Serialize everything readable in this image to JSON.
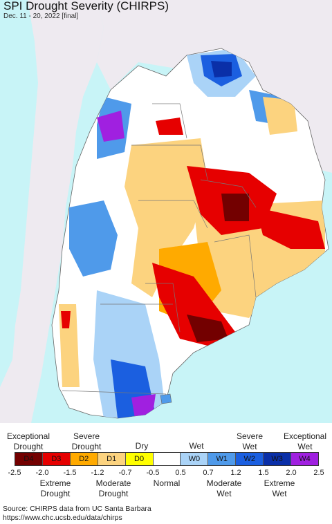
{
  "title": "SPI Drought Severity (CHIRPS)",
  "subtitle": "Dec. 11 - 20, 2022 [final]",
  "colors": {
    "ocean": "#c8f4f7",
    "outside_land": "#eeeaf0",
    "d4": "#730000",
    "d3": "#e60000",
    "d2": "#ffaa00",
    "d1": "#fcd37f",
    "d0": "#ffff00",
    "normal": "#ffffff",
    "w0": "#aad3f7",
    "w1": "#4f9aea",
    "w2": "#1b5fe0",
    "w3": "#0a2fa8",
    "w4": "#a020e0"
  },
  "legend": {
    "top_labels": [
      "Exceptional\nDrought",
      "Severe\nDrought",
      "Dry",
      "Wet",
      "Severe\nWet",
      "Exceptional\nWet"
    ],
    "bottom_labels": [
      "Extreme\nDrought",
      "Moderate\nDrought",
      "Normal",
      "Moderate\nWet",
      "Extreme\nWet"
    ],
    "categories": [
      {
        "code": "D4",
        "color": "#730000"
      },
      {
        "code": "D3",
        "color": "#e60000"
      },
      {
        "code": "D2",
        "color": "#ffaa00"
      },
      {
        "code": "D1",
        "color": "#fcd37f"
      },
      {
        "code": "D0",
        "color": "#ffff00"
      },
      {
        "code": "",
        "color": "#ffffff"
      },
      {
        "code": "W0",
        "color": "#aad3f7"
      },
      {
        "code": "W1",
        "color": "#4f9aea"
      },
      {
        "code": "W2",
        "color": "#1b5fe0"
      },
      {
        "code": "W3",
        "color": "#0a2fa8"
      },
      {
        "code": "W4",
        "color": "#a020e0"
      }
    ],
    "ticks": [
      "-2.5",
      "-2.0",
      "-1.5",
      "-1.2",
      "-0.7",
      "-0.5",
      "0.5",
      "0.7",
      "1.2",
      "1.5",
      "2.0",
      "2.5"
    ]
  },
  "source_line1": "Source: CHIRPS data from UC Santa Barbara",
  "source_line2": "https://www.chc.ucsb.edu/data/chirps"
}
